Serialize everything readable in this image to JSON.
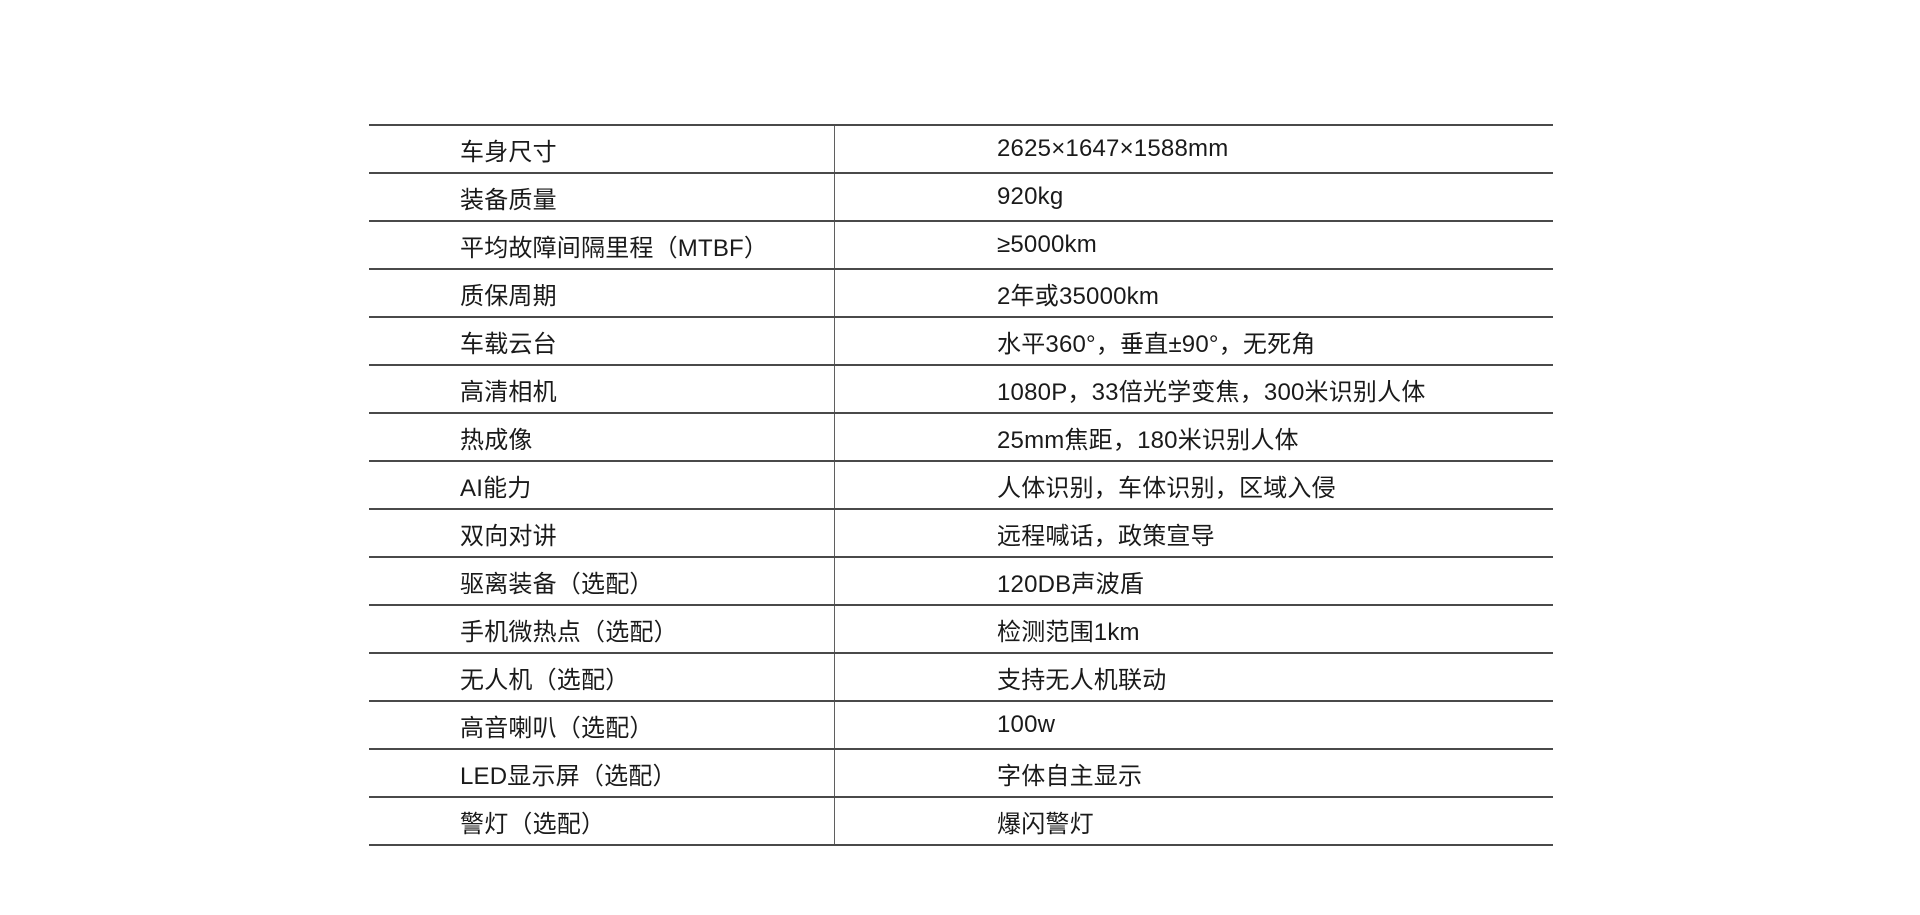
{
  "page": {
    "background": "#ffffff",
    "kind": "product-spec-sheet"
  },
  "colors": {
    "text": "#1a1a1a",
    "horizontal_rule": "#4a4a4a",
    "vertical_divider": "#5f5f5f",
    "background": "#ffffff"
  },
  "table": {
    "rows": [
      {
        "label": "车身尺寸",
        "value": "2625×1647×1588mm"
      },
      {
        "label": "装备质量",
        "value": "920kg"
      },
      {
        "label": "平均故障间隔里程（MTBF）",
        "value": "≥5000km"
      },
      {
        "label": "质保周期",
        "value": "2年或35000km"
      },
      {
        "label": "车载云台",
        "value": "水平360°，垂直±90°，无死角"
      },
      {
        "label": "高清相机",
        "value": "1080P，33倍光学变焦，300米识别人体"
      },
      {
        "label": "热成像",
        "value": "25mm焦距，180米识别人体"
      },
      {
        "label": "AI能力",
        "value": "人体识别，车体识别，区域入侵"
      },
      {
        "label": "双向对讲",
        "value": "远程喊话，政策宣导"
      },
      {
        "label": "驱离装备（选配）",
        "value": "120DB声波盾"
      },
      {
        "label": "手机微热点（选配）",
        "value": "检测范围1km"
      },
      {
        "label": "无人机（选配）",
        "value": "支持无人机联动"
      },
      {
        "label": "高音喇叭（选配）",
        "value": "100w"
      },
      {
        "label": "LED显示屏（选配）",
        "value": "字体自主显示"
      },
      {
        "label": "警灯（选配）",
        "value": "爆闪警灯"
      }
    ]
  }
}
